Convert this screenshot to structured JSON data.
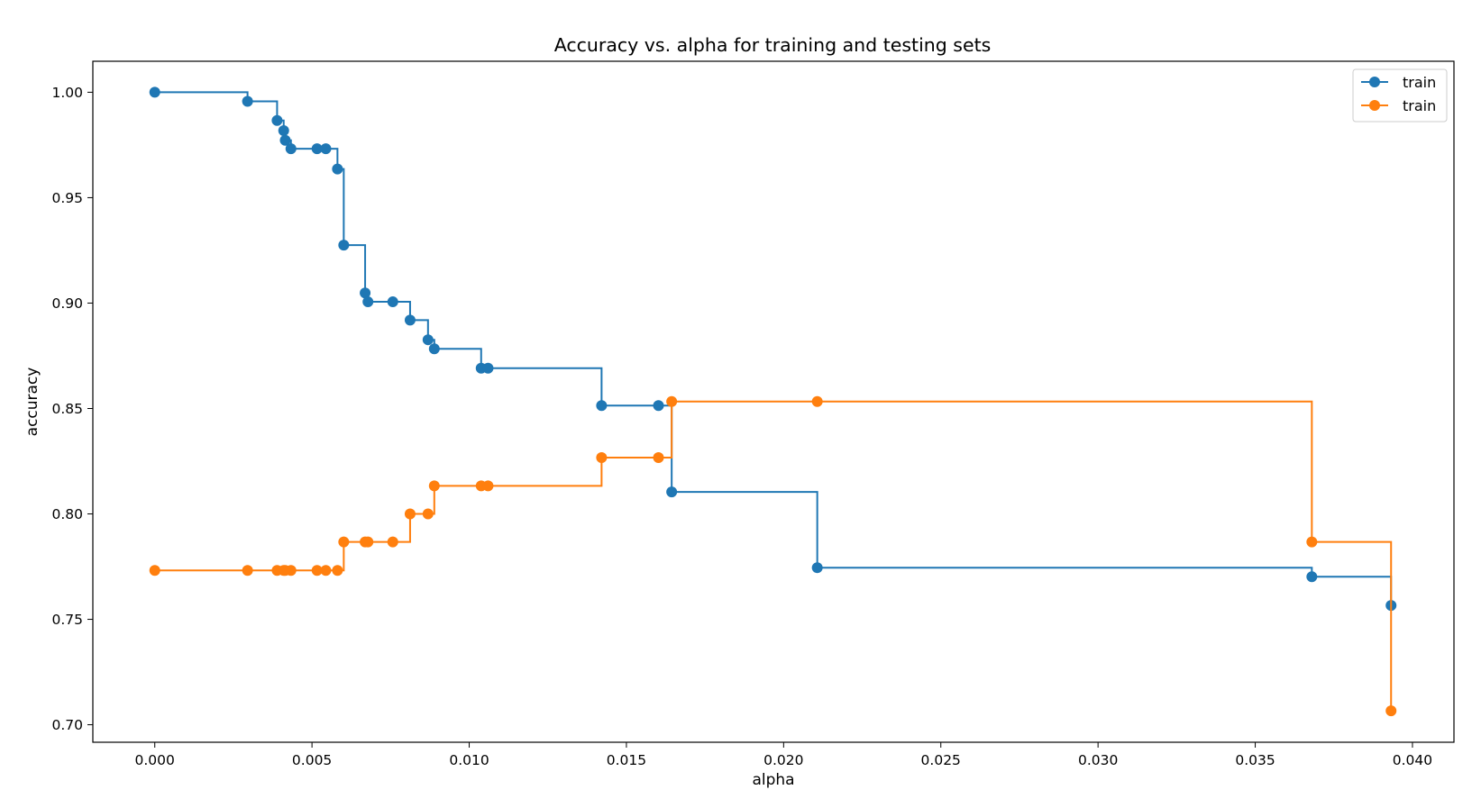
{
  "chart_data": {
    "type": "line",
    "drawstyle": "steps-post",
    "marker": "circle",
    "title": "Accuracy vs. alpha for training and testing sets",
    "xlabel": "alpha",
    "ylabel": "accuracy",
    "xlim": [
      -0.00197,
      0.04132
    ],
    "ylim": [
      0.6917,
      1.0147
    ],
    "xticks": [
      0.0,
      0.005,
      0.01,
      0.015,
      0.02,
      0.025,
      0.03,
      0.035,
      0.04
    ],
    "xtick_labels": [
      "0.000",
      "0.005",
      "0.010",
      "0.015",
      "0.020",
      "0.025",
      "0.030",
      "0.035",
      "0.040"
    ],
    "yticks": [
      0.7,
      0.75,
      0.8,
      0.85,
      0.9,
      0.95,
      1.0
    ],
    "ytick_labels": [
      "0.70",
      "0.75",
      "0.80",
      "0.85",
      "0.90",
      "0.95",
      "1.00"
    ],
    "grid": false,
    "legend_position": "top-right",
    "x": [
      0.0,
      0.00295,
      0.00389,
      0.0041,
      0.00415,
      0.00433,
      0.00516,
      0.00544,
      0.00581,
      0.00601,
      0.00669,
      0.00678,
      0.00757,
      0.00812,
      0.00869,
      0.00889,
      0.01038,
      0.0106,
      0.01421,
      0.01602,
      0.01644,
      0.02107,
      0.0368,
      0.03932
    ],
    "series": [
      {
        "name": "train",
        "color": "#1f77b4",
        "values": [
          1.0,
          0.9957,
          0.9866,
          0.9818,
          0.9772,
          0.9732,
          0.9732,
          0.9732,
          0.9636,
          0.9275,
          0.9048,
          0.9006,
          0.9006,
          0.8919,
          0.8826,
          0.8783,
          0.8691,
          0.8691,
          0.8514,
          0.8514,
          0.8104,
          0.7745,
          0.7702,
          0.7566
        ]
      },
      {
        "name": "train",
        "color": "#ff7f0e",
        "values": [
          0.7732,
          0.7732,
          0.7732,
          0.7732,
          0.7732,
          0.7732,
          0.7732,
          0.7732,
          0.7732,
          0.7867,
          0.7867,
          0.7867,
          0.7867,
          0.8,
          0.8,
          0.8133,
          0.8133,
          0.8133,
          0.8267,
          0.8267,
          0.8533,
          0.8533,
          0.7867,
          0.7066
        ]
      }
    ]
  }
}
